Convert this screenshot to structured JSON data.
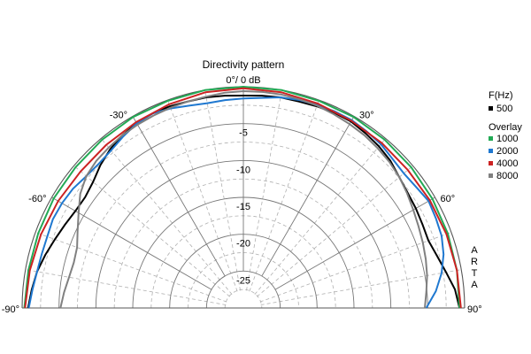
{
  "chart_data": {
    "type": "polar",
    "title": "Directivity pattern",
    "top_label": "0°/ 0 dB",
    "angle_range": [
      -90,
      90
    ],
    "angle_labels": [
      {
        "angle": -90,
        "text": "-90°"
      },
      {
        "angle": -60,
        "text": "-60°"
      },
      {
        "angle": -30,
        "text": "-30°"
      },
      {
        "angle": 30,
        "text": "30°"
      },
      {
        "angle": 60,
        "text": "60°"
      },
      {
        "angle": 90,
        "text": "90°"
      }
    ],
    "radial_unit": "dB",
    "radial_range": [
      -30,
      0
    ],
    "radial_labels": [
      {
        "db": -5,
        "text": "-5"
      },
      {
        "db": -10,
        "text": "-10"
      },
      {
        "db": -15,
        "text": "-15"
      },
      {
        "db": -20,
        "text": "-20"
      },
      {
        "db": -25,
        "text": "-25"
      }
    ],
    "legend_header": "F(Hz)",
    "overlay_header": "Overlay",
    "watermark": "ARTA",
    "series": [
      {
        "name": "500",
        "color": "#000000",
        "angles": [
          -90,
          -85,
          -80,
          -75,
          -70,
          -65,
          -60,
          -55,
          -50,
          -45,
          -40,
          -35,
          -30,
          -25,
          -20,
          -15,
          -10,
          -5,
          0,
          5,
          10,
          15,
          20,
          25,
          30,
          35,
          40,
          45,
          50,
          55,
          60,
          65,
          70,
          75,
          80,
          85,
          90
        ],
        "db": [
          -0.8,
          -1.2,
          -1.6,
          -2.2,
          -2.8,
          -3.3,
          -3.7,
          -3.8,
          -3.4,
          -2.6,
          -1.9,
          -1.4,
          -1.1,
          -0.9,
          -0.9,
          -1,
          -1,
          -1.1,
          -1.2,
          -1.1,
          -1,
          -1,
          -0.9,
          -0.8,
          -0.8,
          -1.1,
          -1.4,
          -1.8,
          -2.4,
          -2.8,
          -3,
          -3.2,
          -3.3,
          -2.8,
          -2.1,
          -1.2,
          -0.7
        ]
      },
      {
        "name": "1000",
        "color": "#22aa55",
        "angles": [
          -90,
          -80,
          -70,
          -60,
          -50,
          -40,
          -30,
          -20,
          -10,
          0,
          10,
          20,
          30,
          40,
          50,
          60,
          70,
          80,
          90
        ],
        "db": [
          -0.3,
          -0.4,
          -0.4,
          -0.3,
          -0.3,
          -0.2,
          -0.1,
          -0.1,
          0,
          0,
          0,
          -0.1,
          -0.1,
          -0.2,
          -0.3,
          -0.4,
          -0.5,
          -0.6,
          -0.7
        ]
      },
      {
        "name": "2000",
        "color": "#1f78d0",
        "angles": [
          -90,
          -85,
          -80,
          -75,
          -70,
          -65,
          -60,
          -55,
          -50,
          -45,
          -40,
          -35,
          -30,
          -25,
          -20,
          -15,
          -10,
          -5,
          0,
          5,
          10,
          15,
          20,
          25,
          30,
          35,
          40,
          45,
          50,
          55,
          60,
          65,
          70,
          75,
          80,
          85,
          90
        ],
        "db": [
          -0.9,
          -1.3,
          -1.6,
          -1.7,
          -1.7,
          -1.5,
          -1.6,
          -1.8,
          -2.2,
          -2.3,
          -2.1,
          -1.6,
          -1.1,
          -0.9,
          -1.2,
          -1.6,
          -1.8,
          -1.7,
          -1.6,
          -1.4,
          -1,
          -0.8,
          -0.7,
          -0.6,
          -0.6,
          -0.8,
          -1,
          -1.4,
          -1.6,
          -1.4,
          -1,
          -1.2,
          -1.4,
          -1.9,
          -2.7,
          -3.8,
          -5.2
        ]
      },
      {
        "name": "4000",
        "color": "#cc2222",
        "angles": [
          -90,
          -80,
          -70,
          -60,
          -50,
          -40,
          -30,
          -20,
          -10,
          0,
          10,
          20,
          30,
          40,
          50,
          60,
          70,
          80,
          90
        ],
        "db": [
          -0.4,
          -0.6,
          -0.8,
          -1,
          -1.2,
          -1.1,
          -0.9,
          -0.6,
          -0.3,
          -0.2,
          -0.3,
          -0.5,
          -0.7,
          -0.8,
          -0.9,
          -0.8,
          -0.7,
          -0.6,
          -0.5
        ]
      },
      {
        "name": "8000",
        "color": "#808080",
        "angles": [
          -90,
          -85,
          -80,
          -75,
          -70,
          -65,
          -60,
          -55,
          -50,
          -45,
          -40,
          -35,
          -30,
          -25,
          -20,
          -15,
          -10,
          -5,
          0,
          5,
          10,
          15,
          20,
          25,
          30,
          35,
          40,
          45,
          50,
          55,
          60,
          65,
          70,
          75,
          80,
          85,
          90
        ],
        "db": [
          -5.2,
          -5.6,
          -6,
          -6.2,
          -6,
          -5.2,
          -4.2,
          -3,
          -2.2,
          -1.8,
          -1.6,
          -1.4,
          -1.3,
          -1.2,
          -1.1,
          -1,
          -0.9,
          -0.7,
          -0.6,
          -0.6,
          -0.6,
          -0.7,
          -0.8,
          -1,
          -1.2,
          -1.4,
          -1.7,
          -2,
          -2.4,
          -2.9,
          -3.4,
          -3.8,
          -4.1,
          -4.4,
          -4.7,
          -5.1,
          -5.4
        ]
      }
    ]
  }
}
